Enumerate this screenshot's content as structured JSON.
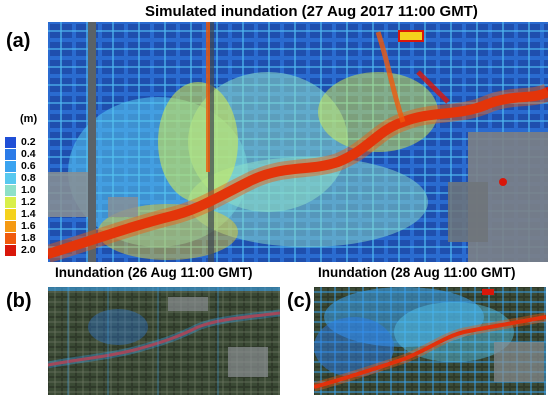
{
  "panels": {
    "a": {
      "label": "(a)",
      "title": "Simulated inundation (27 Aug 2017 11:00 GMT)"
    },
    "b": {
      "label": "(b)",
      "title": "Inundation (26 Aug 11:00 GMT)"
    },
    "c": {
      "label": "(c)",
      "title": "Inundation (28 Aug 11:00 GMT)"
    }
  },
  "legend": {
    "unit": "(m)",
    "ticks": [
      "0.2",
      "0.4",
      "0.6",
      "0.8",
      "1.0",
      "1.2",
      "1.4",
      "1.6",
      "1.8",
      "2.0"
    ],
    "colors": [
      "#1f4fd6",
      "#2b7be8",
      "#3aa3f0",
      "#57c8ef",
      "#8ee0c8",
      "#d9ef4a",
      "#f5d21c",
      "#f59a12",
      "#f05a0c",
      "#d9170a"
    ]
  }
}
